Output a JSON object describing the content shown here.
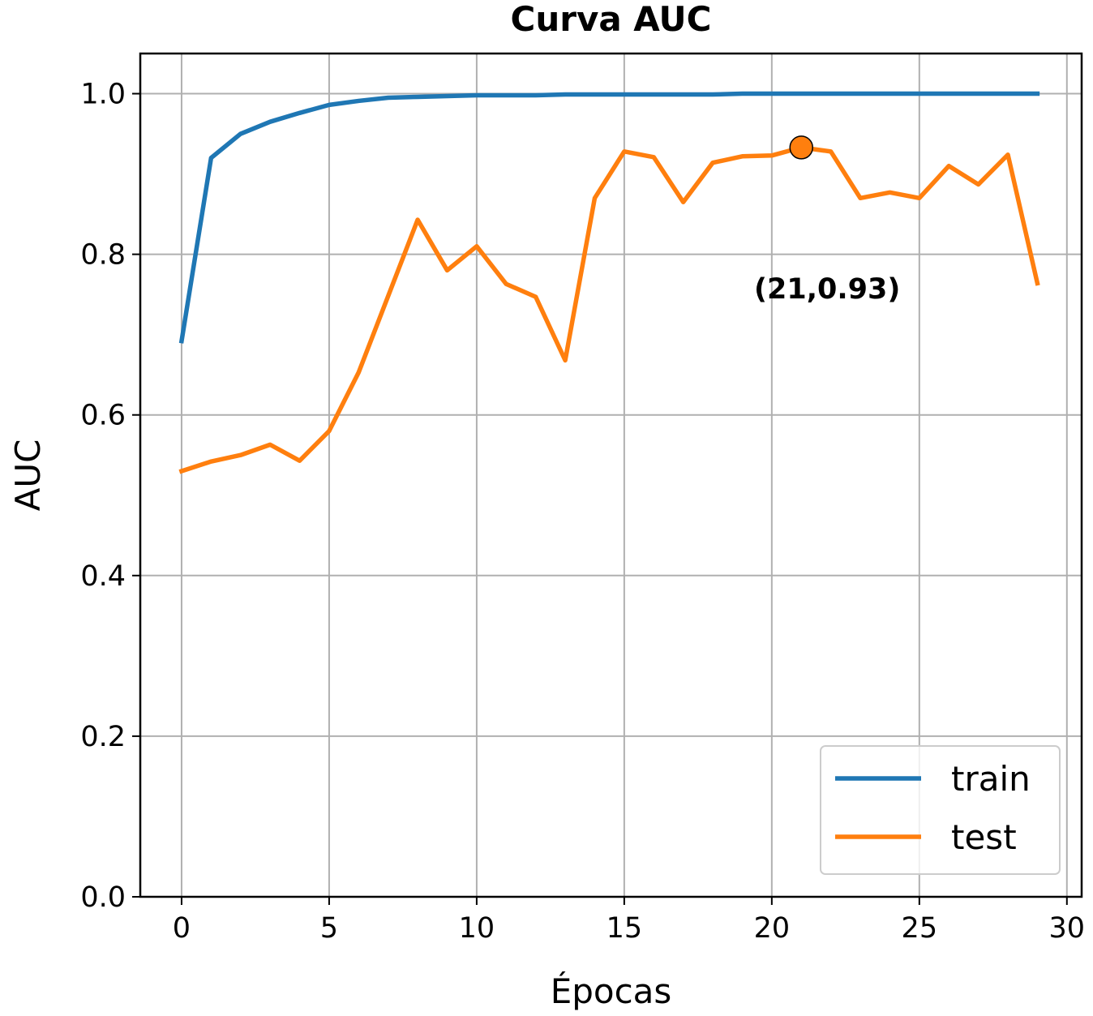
{
  "chart_data": {
    "type": "line",
    "title": "Curva AUC",
    "xlabel": "Épocas",
    "ylabel": "AUC",
    "xlim": [
      -1.4,
      30.5
    ],
    "ylim": [
      0,
      1.05
    ],
    "xticks": [
      0,
      5,
      10,
      15,
      20,
      25,
      30
    ],
    "yticks": [
      0.0,
      0.2,
      0.4,
      0.6,
      0.8,
      1.0
    ],
    "xtick_labels": [
      "0",
      "5",
      "10",
      "15",
      "20",
      "25",
      "30"
    ],
    "ytick_labels": [
      "0.0",
      "0.2",
      "0.4",
      "0.6",
      "0.8",
      "1.0"
    ],
    "grid": true,
    "legend_position": "lower-right",
    "x": [
      0,
      1,
      2,
      3,
      4,
      5,
      6,
      7,
      8,
      9,
      10,
      11,
      12,
      13,
      14,
      15,
      16,
      17,
      18,
      19,
      20,
      21,
      22,
      23,
      24,
      25,
      26,
      27,
      28,
      29
    ],
    "series": [
      {
        "name": "train",
        "color": "#1f77b4",
        "values": [
          0.692,
          0.92,
          0.95,
          0.965,
          0.976,
          0.986,
          0.991,
          0.995,
          0.996,
          0.997,
          0.998,
          0.998,
          0.998,
          0.999,
          0.999,
          0.999,
          0.999,
          0.999,
          0.999,
          1.0,
          1.0,
          1.0,
          1.0,
          1.0,
          1.0,
          1.0,
          1.0,
          1.0,
          1.0,
          1.0
        ]
      },
      {
        "name": "test",
        "color": "#ff7f0e",
        "values": [
          0.53,
          0.542,
          0.55,
          0.563,
          0.543,
          0.58,
          0.653,
          0.748,
          0.843,
          0.78,
          0.81,
          0.763,
          0.747,
          0.668,
          0.87,
          0.928,
          0.921,
          0.865,
          0.914,
          0.922,
          0.923,
          0.933,
          0.928,
          0.87,
          0.877,
          0.87,
          0.91,
          0.887,
          0.924,
          0.764
        ]
      }
    ],
    "highlight": {
      "x": 21,
      "y": 0.933,
      "color": "#ff7f0e"
    },
    "annotation": {
      "text": "(21,0.93)",
      "x": 19.4,
      "y": 0.745
    }
  }
}
